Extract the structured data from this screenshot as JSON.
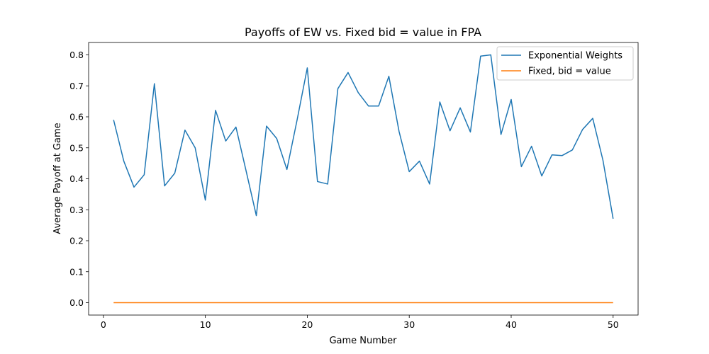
{
  "chart_data": {
    "type": "line",
    "title": "Payoffs of EW vs. Fixed bid = value in FPA",
    "xlabel": "Game Number",
    "ylabel": "Average Payoff at Game",
    "xlim": [
      -1.45,
      52.45
    ],
    "ylim": [
      -0.04,
      0.84
    ],
    "xticks": [
      0,
      10,
      20,
      30,
      40,
      50
    ],
    "yticks": [
      0.0,
      0.1,
      0.2,
      0.3,
      0.4,
      0.5,
      0.6,
      0.7,
      0.8
    ],
    "xtick_labels": [
      "0",
      "10",
      "20",
      "30",
      "40",
      "50"
    ],
    "ytick_labels": [
      "0.0",
      "0.1",
      "0.2",
      "0.3",
      "0.4",
      "0.5",
      "0.6",
      "0.7",
      "0.8"
    ],
    "grid": false,
    "legend_position": "top-right",
    "x": [
      1,
      2,
      3,
      4,
      5,
      6,
      7,
      8,
      9,
      10,
      11,
      12,
      13,
      14,
      15,
      16,
      17,
      18,
      19,
      20,
      21,
      22,
      23,
      24,
      25,
      26,
      27,
      28,
      29,
      30,
      31,
      32,
      33,
      34,
      35,
      36,
      37,
      38,
      39,
      40,
      41,
      42,
      43,
      44,
      45,
      46,
      47,
      48,
      49,
      50
    ],
    "series": [
      {
        "name": "Exponential Weights",
        "color": "#1f77b4",
        "values": [
          0.59,
          0.457,
          0.373,
          0.413,
          0.707,
          0.377,
          0.418,
          0.557,
          0.5,
          0.331,
          0.621,
          0.522,
          0.567,
          0.425,
          0.281,
          0.57,
          0.53,
          0.43,
          0.59,
          0.758,
          0.391,
          0.383,
          0.691,
          0.743,
          0.678,
          0.635,
          0.635,
          0.731,
          0.553,
          0.423,
          0.457,
          0.383,
          0.648,
          0.555,
          0.629,
          0.551,
          0.796,
          0.8,
          0.543,
          0.656,
          0.439,
          0.505,
          0.409,
          0.477,
          0.475,
          0.493,
          0.559,
          0.595,
          0.46,
          0.271
        ]
      },
      {
        "name": "Fixed, bid = value",
        "color": "#ff7f0e",
        "values": [
          0,
          0,
          0,
          0,
          0,
          0,
          0,
          0,
          0,
          0,
          0,
          0,
          0,
          0,
          0,
          0,
          0,
          0,
          0,
          0,
          0,
          0,
          0,
          0,
          0,
          0,
          0,
          0,
          0,
          0,
          0,
          0,
          0,
          0,
          0,
          0,
          0,
          0,
          0,
          0,
          0,
          0,
          0,
          0,
          0,
          0,
          0,
          0,
          0,
          0
        ]
      }
    ]
  }
}
